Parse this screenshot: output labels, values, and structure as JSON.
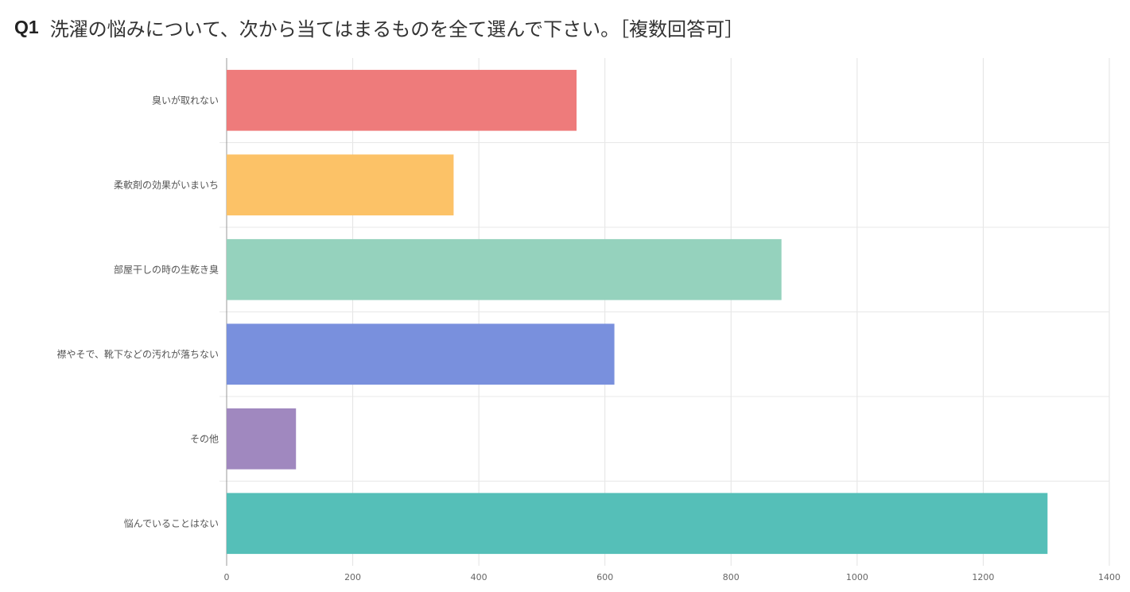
{
  "question": {
    "label": "Q1",
    "text": "洗濯の悩みについて、次から当てはまるものを全て選んで下さい。［複数回答可］"
  },
  "chart_data": {
    "type": "bar",
    "orientation": "horizontal",
    "categories": [
      "臭いが取れない",
      "柔軟剤の効果がいまいち",
      "部屋干しの時の生乾き臭",
      "襟やそで、靴下などの汚れが落ちない",
      "その他",
      "悩んでいることはない"
    ],
    "values": [
      555,
      360,
      880,
      615,
      110,
      1302
    ],
    "colors": [
      "#ee7b7b",
      "#fcc267",
      "#95d2bd",
      "#7990dd",
      "#a088bf",
      "#55bfb8"
    ],
    "xlim": [
      0,
      1400
    ],
    "xticks": [
      0,
      200,
      400,
      600,
      800,
      1000,
      1200,
      1400
    ],
    "grid": true
  }
}
